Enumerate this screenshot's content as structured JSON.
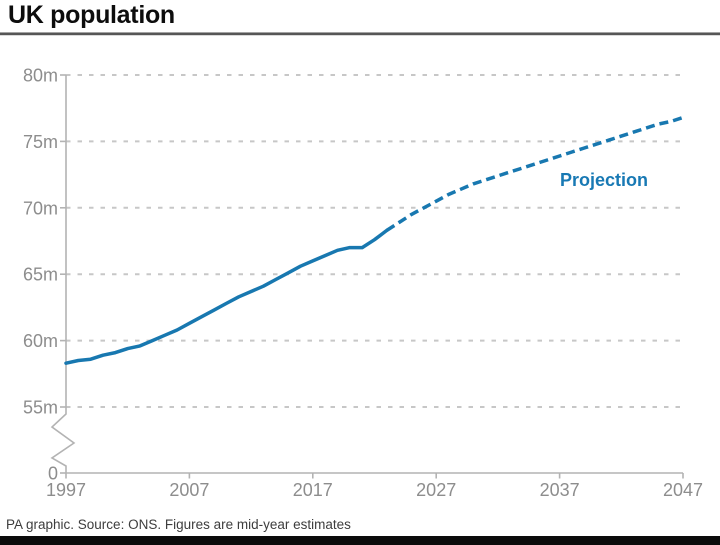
{
  "header": {
    "title": "UK population"
  },
  "footer": {
    "credit": "PA graphic. Source: ONS. Figures are mid-year estimates"
  },
  "colors": {
    "line": "#1878b0",
    "annotation_text": "#1879b4",
    "grid": "#c7c7c7",
    "axis": "#b3b3b3",
    "tick_text": "#8d8d8d",
    "title_text": "#0d0d0d",
    "footer_text": "#3d3d3d",
    "bottom_bar": "#0b0b0b"
  },
  "chart_data": {
    "type": "line",
    "title": "UK population",
    "xlabel": "",
    "ylabel": "",
    "unit": "millions of people",
    "x_axis": {
      "tick_labels": [
        "1997",
        "2007",
        "2017",
        "2027",
        "2037",
        "2047"
      ],
      "tick_values": [
        1997,
        2007,
        2017,
        2027,
        2037,
        2047
      ],
      "range": [
        1997,
        2047
      ]
    },
    "y_axis": {
      "tick_labels": [
        "80m",
        "75m",
        "70m",
        "65m",
        "60m",
        "55m"
      ],
      "tick_values": [
        80,
        75,
        70,
        65,
        60,
        55
      ],
      "break_label": "0",
      "broken_axis": true,
      "range_shown": [
        55,
        80
      ],
      "gridlines": "dashed"
    },
    "legend_position": "none",
    "annotation": {
      "text": "Projection",
      "year": 2040.6,
      "value": 72.1
    },
    "series": [
      {
        "name": "Mid-year estimates",
        "style": "solid",
        "points": [
          [
            1997,
            58.3
          ],
          [
            1998,
            58.5
          ],
          [
            1999,
            58.6
          ],
          [
            2000,
            58.9
          ],
          [
            2001,
            59.1
          ],
          [
            2002,
            59.4
          ],
          [
            2003,
            59.6
          ],
          [
            2004,
            60.0
          ],
          [
            2005,
            60.4
          ],
          [
            2006,
            60.8
          ],
          [
            2007,
            61.3
          ],
          [
            2008,
            61.8
          ],
          [
            2009,
            62.3
          ],
          [
            2010,
            62.8
          ],
          [
            2011,
            63.3
          ],
          [
            2012,
            63.7
          ],
          [
            2013,
            64.1
          ],
          [
            2014,
            64.6
          ],
          [
            2015,
            65.1
          ],
          [
            2016,
            65.6
          ],
          [
            2017,
            66.0
          ],
          [
            2018,
            66.4
          ],
          [
            2019,
            66.8
          ],
          [
            2020,
            67.0
          ],
          [
            2021,
            67.0
          ],
          [
            2022,
            67.6
          ],
          [
            2023,
            68.3
          ]
        ]
      },
      {
        "name": "Projection",
        "style": "dashed",
        "points": [
          [
            2023,
            68.3
          ],
          [
            2024,
            68.9
          ],
          [
            2025,
            69.5
          ],
          [
            2026,
            70.0
          ],
          [
            2027,
            70.5
          ],
          [
            2028,
            71.0
          ],
          [
            2029,
            71.4
          ],
          [
            2030,
            71.8
          ],
          [
            2031,
            72.1
          ],
          [
            2032,
            72.4
          ],
          [
            2033,
            72.7
          ],
          [
            2034,
            73.0
          ],
          [
            2035,
            73.3
          ],
          [
            2036,
            73.6
          ],
          [
            2037,
            73.9
          ],
          [
            2038,
            74.2
          ],
          [
            2039,
            74.5
          ],
          [
            2040,
            74.8
          ],
          [
            2041,
            75.1
          ],
          [
            2042,
            75.4
          ],
          [
            2043,
            75.7
          ],
          [
            2044,
            76.0
          ],
          [
            2045,
            76.3
          ],
          [
            2046,
            76.5
          ],
          [
            2047,
            76.8
          ]
        ]
      }
    ]
  }
}
